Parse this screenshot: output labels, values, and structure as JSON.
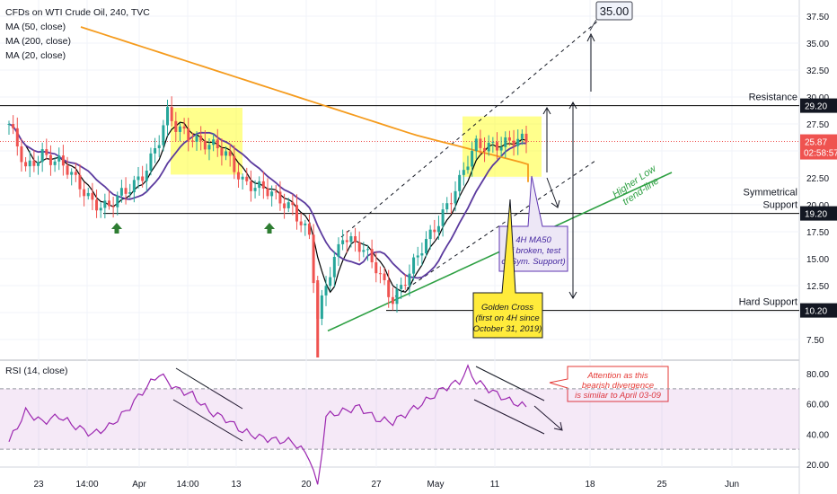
{
  "title": "CFDs on WTI Crude Oil, 240, TVC",
  "legend": [
    "MA (50, close)",
    "MA (200, close)",
    "MA (20, close)"
  ],
  "rsi_label": "RSI (14, close)",
  "colors": {
    "up": "#26a69a",
    "down": "#ef5350",
    "ma50": "#000000",
    "ma200": "#f59b1d",
    "ma20": "#5b3a9e",
    "rsi": "#9c27b0",
    "zone": "#ffff00",
    "trend": "#2ea043",
    "annotation_red": "#e53935"
  },
  "chart_data": [
    {
      "type": "candlestick",
      "title": "CFDs on WTI Crude Oil, 240, TVC",
      "ylim": [
        6,
        38.5
      ],
      "yticks": [
        "37.50",
        "35.00",
        "32.50",
        "30.00",
        "27.50",
        "25.00",
        "22.50",
        "20.00",
        "17.50",
        "15.00",
        "12.50",
        "10.00",
        "7.50"
      ],
      "xticks": [
        "23",
        "14:00",
        "Apr",
        "14:00",
        "13",
        "20",
        "27",
        "May",
        "11",
        "18",
        "25",
        "Jun"
      ],
      "close_path": [
        [
          0,
          27.5
        ],
        [
          2,
          23.0
        ],
        [
          4,
          25.0
        ],
        [
          6,
          24.0
        ],
        [
          8,
          22.0
        ],
        [
          10,
          20.5
        ],
        [
          12,
          19.8
        ],
        [
          14,
          21.0
        ],
        [
          16,
          23.0
        ],
        [
          18,
          26.0
        ],
        [
          19,
          28.2
        ],
        [
          20,
          27.0
        ],
        [
          22,
          26.5
        ],
        [
          24,
          25.5
        ],
        [
          26,
          24.5
        ],
        [
          28,
          22.5
        ],
        [
          30,
          21.5
        ],
        [
          32,
          20.5
        ],
        [
          34,
          20.0
        ],
        [
          36,
          17.0
        ],
        [
          37,
          9.0
        ],
        [
          38,
          12.5
        ],
        [
          40,
          17.5
        ],
        [
          42,
          16.0
        ],
        [
          44,
          14.0
        ],
        [
          46,
          11.5
        ],
        [
          48,
          13.5
        ],
        [
          50,
          16.5
        ],
        [
          52,
          19.5
        ],
        [
          54,
          22.0
        ],
        [
          56,
          25.5
        ],
        [
          58,
          25.8
        ],
        [
          60,
          25.6
        ],
        [
          62,
          25.87
        ]
      ],
      "current_price": "25.87",
      "countdown": "02:58:57",
      "levels": [
        {
          "label": "Resistance",
          "value": "29.20"
        },
        {
          "label": "Symmetrical Support",
          "label_lines": [
            "Symmetrical",
            "Support"
          ],
          "value": "19.20"
        },
        {
          "label": "Hard Support",
          "value": "10.20"
        }
      ],
      "target": "35.00",
      "annotations": {
        "trendline": "Higher Low trend-line",
        "trendline_lines": [
          "Higher Low",
          "trend-line"
        ],
        "ma50_note": "4H MA50 (if broken, test of Sym. Support)",
        "ma50_note_lines": [
          "4H MA50",
          "(if broken, test",
          "of Sym. Support)"
        ],
        "golden_cross": "Golden Cross (first on 4H since October 31, 2019)",
        "golden_cross_lines": [
          "Golden Cross",
          "(first on 4H since",
          "October 31, 2019)"
        ]
      }
    },
    {
      "type": "line",
      "title": "RSI (14, close)",
      "ylim": [
        5,
        90
      ],
      "yticks": [
        "80.00",
        "60.00",
        "40.00",
        "20.00"
      ],
      "bands": [
        70,
        30
      ],
      "series": [
        {
          "name": "RSI (14, close)",
          "values": [
            [
              0,
              35
            ],
            [
              2,
              55
            ],
            [
              4,
              48
            ],
            [
              6,
              52
            ],
            [
              8,
              45
            ],
            [
              10,
              40
            ],
            [
              12,
              45
            ],
            [
              14,
              55
            ],
            [
              16,
              68
            ],
            [
              18,
              80
            ],
            [
              20,
              70
            ],
            [
              22,
              66
            ],
            [
              24,
              55
            ],
            [
              26,
              50
            ],
            [
              28,
              42
            ],
            [
              30,
              38
            ],
            [
              32,
              36
            ],
            [
              34,
              35
            ],
            [
              36,
              25
            ],
            [
              37,
              5
            ],
            [
              38,
              52
            ],
            [
              40,
              55
            ],
            [
              42,
              58
            ],
            [
              44,
              50
            ],
            [
              46,
              48
            ],
            [
              48,
              55
            ],
            [
              50,
              62
            ],
            [
              52,
              70
            ],
            [
              54,
              75
            ],
            [
              55,
              83
            ],
            [
              56,
              75
            ],
            [
              58,
              68
            ],
            [
              60,
              62
            ],
            [
              62,
              58
            ]
          ]
        }
      ],
      "annotations": {
        "divergence_note": "Attention as this bearish divergence is similar to April 03-09",
        "divergence_note_lines": [
          "Attention as this",
          "bearish divergence",
          "is similar to April 03-09"
        ]
      }
    }
  ]
}
